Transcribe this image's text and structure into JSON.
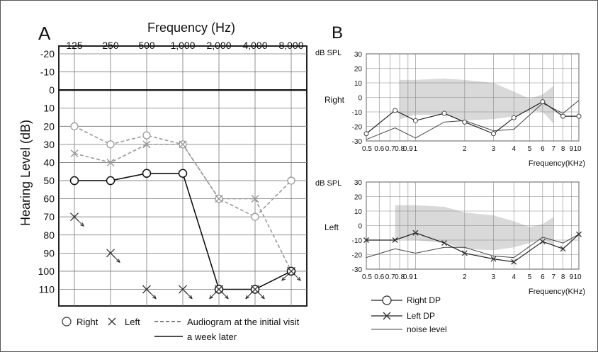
{
  "chart_data": [
    {
      "type": "line",
      "panel_label": "A",
      "title": "Frequency (Hz)",
      "ylabel": "Hearing Level (dB)",
      "ylim": [
        -20,
        120
      ],
      "y_ticks": [
        -20,
        -10,
        0,
        10,
        20,
        30,
        40,
        50,
        60,
        70,
        80,
        90,
        100,
        110
      ],
      "categories": [
        "125",
        "250",
        "500",
        "1,000",
        "2,000",
        "4,000",
        "8,000"
      ],
      "series": [
        {
          "name": "Right – Audiogram at the initial visit",
          "ear": "right",
          "style": "dashed",
          "values": [
            20,
            30,
            25,
            30,
            60,
            70,
            50
          ]
        },
        {
          "name": "Left – Audiogram at the initial visit",
          "ear": "left",
          "style": "dashed",
          "values": [
            35,
            40,
            30,
            30,
            60,
            60,
            100
          ]
        },
        {
          "name": "Right – a week later",
          "ear": "right",
          "style": "solid",
          "values": [
            50,
            50,
            46,
            46,
            110,
            110,
            100
          ]
        },
        {
          "name": "Left – a week later (no response)",
          "ear": "left",
          "style": "none",
          "values": [
            70,
            90,
            110,
            110,
            110,
            110,
            100
          ]
        }
      ],
      "no_response_marks": [
        {
          "category": "2,000",
          "value": 110,
          "ear": "right"
        },
        {
          "category": "4,000",
          "value": 110,
          "ear": "right"
        },
        {
          "category": "8,000",
          "value": 100,
          "ear": "right"
        }
      ],
      "legend": {
        "right": "Right",
        "left": "Left",
        "dashed": "Audiogram at the initial visit",
        "solid": "a week later"
      }
    },
    {
      "type": "line",
      "panel_label": "B",
      "ylabel": "dB SPL",
      "xlabel": "Frequency(KHz)",
      "x_scale": "log",
      "ylim": [
        -30,
        30
      ],
      "y_ticks": [
        30,
        20,
        10,
        0,
        -10,
        -20,
        -30
      ],
      "x_tick_labels": [
        "0.5",
        "0.6",
        "0.7",
        "0.8",
        "0.9",
        "1",
        "2",
        "3",
        "4",
        "5",
        "6",
        "7",
        "8",
        "9",
        "10"
      ],
      "panels": [
        {
          "label": "Right",
          "series": [
            {
              "name": "Right DP",
              "x": [
                0.5,
                0.75,
                1.0,
                1.5,
                2.0,
                3.0,
                4.0,
                6.0,
                8.0,
                10.0
              ],
              "values": [
                -25,
                -9,
                -16,
                -11,
                -17,
                -25,
                -14,
                -3,
                -13,
                -13
              ]
            },
            {
              "name": "noise level",
              "x": [
                0.5,
                0.75,
                1.0,
                1.5,
                2.0,
                3.0,
                4.0,
                6.0,
                8.0,
                10.0
              ],
              "values": [
                -29,
                -21,
                -28,
                -17,
                -16,
                -23,
                -22,
                -4,
                -11,
                -2
              ]
            }
          ],
          "band": {
            "x": [
              0.8,
              1.0,
              1.5,
              2.0,
              3.0,
              4.0,
              5.0,
              6.0,
              7.0
            ],
            "upper": [
              12,
              12,
              13,
              12,
              10,
              4,
              -1,
              2,
              8
            ],
            "lower": [
              -15,
              -12,
              -12,
              -16,
              -15,
              -13,
              -9,
              -10,
              -18
            ]
          }
        },
        {
          "label": "Left",
          "series": [
            {
              "name": "Left DP",
              "x": [
                0.5,
                0.75,
                1.0,
                1.5,
                2.0,
                3.0,
                4.0,
                6.0,
                8.0,
                10.0
              ],
              "values": [
                -10,
                -10,
                -5,
                -12,
                -19,
                -23,
                -25,
                -11,
                -16,
                -6
              ]
            },
            {
              "name": "noise level",
              "x": [
                0.5,
                0.75,
                1.0,
                1.5,
                2.0,
                3.0,
                4.0,
                6.0,
                8.0,
                10.0
              ],
              "values": [
                -22,
                -16,
                -19,
                -15,
                -15,
                -21,
                -22,
                -8,
                -12,
                -6
              ]
            }
          ],
          "band": {
            "x": [
              0.75,
              1.0,
              1.5,
              2.0,
              3.0,
              4.0,
              5.0,
              6.0,
              7.0
            ],
            "upper": [
              14,
              14,
              13,
              9,
              7,
              3,
              -1,
              1,
              6
            ],
            "lower": [
              -9,
              -10,
              -12,
              -16,
              -17,
              -15,
              -12,
              -9,
              -14
            ]
          }
        }
      ],
      "legend": [
        "Right DP",
        "Left DP",
        "noise level"
      ]
    }
  ]
}
